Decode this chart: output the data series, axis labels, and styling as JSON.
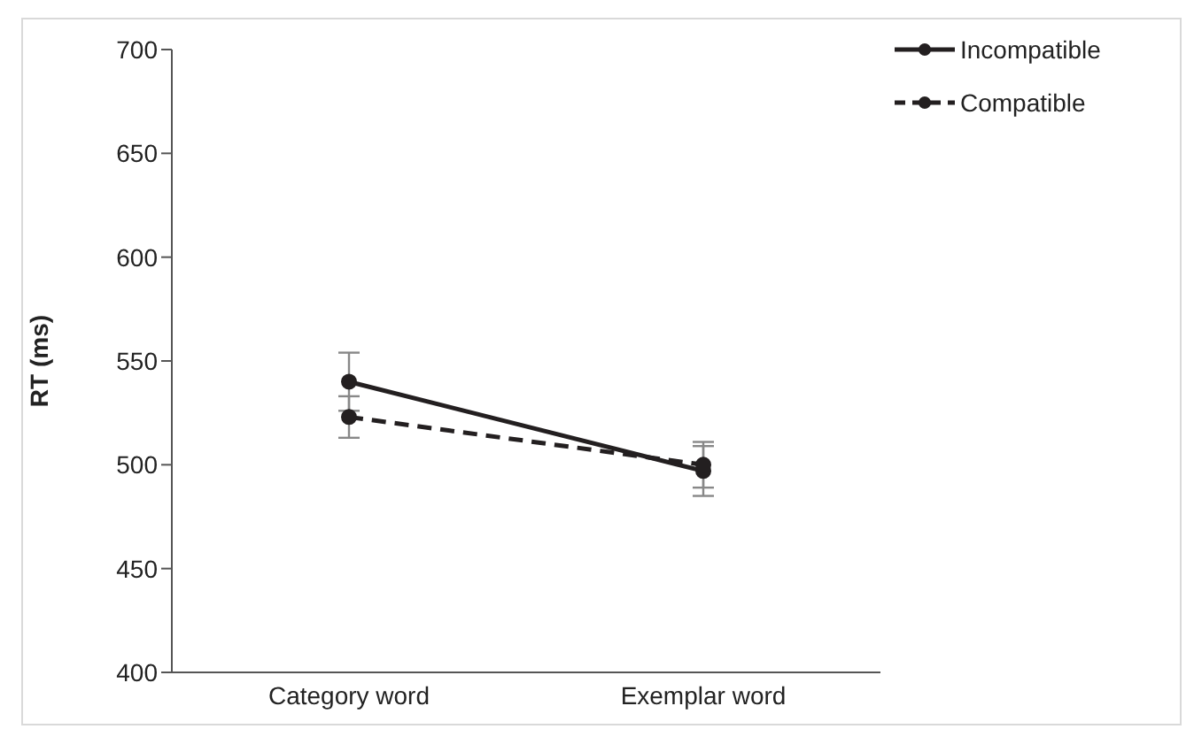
{
  "chart_data": {
    "type": "line",
    "ylabel": "RT (ms)",
    "categories": [
      "Category word",
      "Exemplar word"
    ],
    "series": [
      {
        "name": "Incompatible",
        "color": "#231f20",
        "values": [
          540,
          497
        ],
        "errors": [
          14,
          12
        ],
        "line_style": "solid"
      },
      {
        "name": "Compatible",
        "color": "#231f20",
        "values": [
          523,
          500
        ],
        "errors": [
          10,
          11
        ],
        "line_style": "dashed"
      }
    ],
    "ylim": [
      400,
      700
    ],
    "yticks": [
      400,
      450,
      500,
      550,
      600,
      650,
      700
    ],
    "grid": false,
    "legend": "top right",
    "marker": "circle"
  }
}
